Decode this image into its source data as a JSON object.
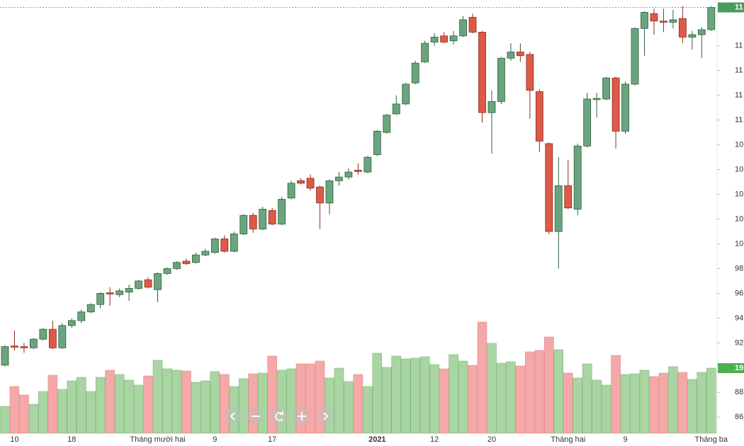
{
  "chart_data": {
    "type": "candlestick",
    "categories": [
      null,
      "10",
      null,
      null,
      null,
      null,
      null,
      "18",
      null,
      null,
      null,
      null,
      null,
      null,
      null,
      null,
      "Tháng mười hai",
      null,
      null,
      null,
      null,
      null,
      "9",
      null,
      null,
      null,
      null,
      null,
      "17",
      null,
      null,
      null,
      null,
      null,
      null,
      null,
      null,
      null,
      null,
      "2021",
      null,
      null,
      null,
      null,
      null,
      "12",
      null,
      null,
      null,
      null,
      null,
      "20",
      null,
      null,
      null,
      null,
      null,
      null,
      null,
      "Tháng hai",
      null,
      null,
      null,
      null,
      null,
      "9",
      null,
      null,
      null,
      null,
      null,
      null,
      null,
      null,
      "Tháng ba"
    ],
    "open": [
      90.2,
      91.75,
      91.7,
      91.6,
      92.3,
      93.1,
      91.6,
      93.4,
      93.8,
      94.5,
      95.1,
      96.05,
      95.9,
      96.1,
      96.4,
      97.1,
      96.3,
      97.6,
      98.0,
      98.6,
      98.5,
      99.1,
      99.3,
      100.4,
      99.4,
      100.8,
      102.3,
      101.2,
      102.7,
      101.6,
      103.7,
      105.1,
      105.3,
      104.6,
      103.3,
      105.1,
      105.4,
      105.95,
      105.8,
      107.2,
      109.0,
      110.5,
      111.3,
      113.0,
      114.7,
      116.3,
      116.8,
      116.4,
      116.8,
      118.3,
      117.1,
      110.6,
      111.5,
      115.0,
      115.5,
      115.3,
      112.3,
      108.1,
      101.0,
      104.7,
      102.8,
      107.9,
      111.65,
      111.7,
      113.4,
      109.1,
      112.9,
      117.4,
      118.6,
      118.0,
      117.9,
      118.2,
      116.7,
      116.9,
      117.3
    ],
    "high": [
      91.8,
      93.0,
      92.0,
      92.4,
      93.2,
      93.8,
      93.6,
      94.0,
      94.7,
      95.2,
      96.1,
      96.5,
      96.4,
      96.7,
      97.1,
      97.3,
      97.7,
      98.1,
      98.6,
      98.8,
      99.3,
      99.6,
      100.5,
      100.7,
      101.0,
      102.4,
      102.5,
      103.0,
      102.9,
      103.8,
      105.1,
      105.3,
      105.6,
      104.7,
      105.2,
      105.8,
      106.1,
      106.5,
      107.1,
      109.2,
      110.5,
      112.0,
      113.0,
      114.8,
      116.4,
      117.0,
      117.1,
      117.2,
      118.4,
      118.6,
      117.2,
      112.4,
      115.1,
      116.2,
      116.2,
      115.5,
      112.5,
      108.2,
      107.0,
      106.8,
      108.1,
      112.2,
      112.2,
      113.5,
      113.5,
      113.1,
      117.5,
      118.8,
      119.0,
      119.0,
      118.9,
      119.2,
      117.2,
      117.5,
      119.2
    ],
    "low": [
      90.1,
      91.4,
      91.2,
      91.5,
      92.2,
      91.5,
      91.5,
      93.2,
      93.6,
      94.4,
      94.8,
      95.0,
      95.7,
      95.4,
      96.3,
      96.4,
      95.3,
      97.5,
      97.9,
      98.3,
      98.4,
      99.0,
      99.2,
      99.3,
      99.3,
      100.7,
      100.9,
      101.1,
      101.5,
      101.5,
      103.6,
      104.8,
      104.3,
      101.2,
      102.4,
      104.7,
      105.2,
      105.6,
      105.7,
      107.1,
      108.9,
      110.4,
      111.2,
      112.9,
      114.6,
      116.0,
      116.2,
      116.1,
      116.7,
      117.0,
      109.8,
      107.3,
      111.3,
      114.8,
      114.7,
      110.1,
      107.4,
      100.8,
      98.0,
      102.8,
      102.3,
      107.8,
      110.2,
      111.6,
      107.7,
      108.9,
      112.8,
      115.2,
      116.9,
      117.1,
      117.4,
      116.2,
      115.7,
      115.0,
      117.2
    ],
    "close": [
      91.7,
      91.65,
      91.6,
      92.3,
      93.1,
      91.6,
      93.4,
      93.8,
      94.5,
      95.1,
      96.0,
      95.95,
      96.2,
      96.4,
      97.0,
      96.5,
      97.6,
      98.0,
      98.5,
      98.4,
      99.1,
      99.4,
      100.4,
      99.4,
      100.8,
      102.3,
      101.2,
      102.8,
      101.6,
      103.6,
      104.9,
      104.9,
      104.5,
      103.3,
      105.1,
      105.4,
      105.8,
      105.85,
      107.0,
      109.1,
      110.4,
      111.3,
      112.9,
      114.6,
      116.2,
      116.7,
      116.3,
      116.8,
      118.1,
      117.1,
      110.6,
      111.5,
      115.0,
      115.5,
      115.2,
      112.4,
      108.3,
      101.0,
      104.7,
      102.9,
      107.9,
      111.7,
      111.75,
      113.4,
      109.1,
      112.9,
      117.4,
      118.7,
      118.0,
      117.9,
      118.1,
      116.7,
      116.9,
      117.3,
      119.1
    ],
    "volume": [
      38,
      66,
      54,
      41,
      59,
      82,
      62,
      74,
      79,
      59,
      79,
      89,
      83,
      75,
      68,
      81,
      103,
      91,
      89,
      88,
      72,
      74,
      87,
      83,
      66,
      77,
      84,
      85,
      109,
      89,
      91,
      98,
      98,
      102,
      78,
      92,
      73,
      83,
      66,
      113,
      93,
      109,
      105,
      106,
      108,
      97,
      91,
      111,
      102,
      96,
      157,
      127,
      99,
      101,
      95,
      115,
      117,
      136,
      118,
      85,
      78,
      98,
      75,
      68,
      110,
      83,
      84,
      89,
      80,
      85,
      94,
      86,
      76,
      86,
      92
    ],
    "up_color": "#6aa57f",
    "down_color": "#de5a48",
    "up_volume_color": "#a8d5a2",
    "down_volume_color": "#f5a8a8",
    "ylim": [
      84.7,
      119.7
    ],
    "vlim": [
      0,
      200
    ],
    "yticks": [
      86,
      88,
      {
        "value": 92,
        "label": "92"
      },
      94,
      96,
      98,
      {
        "value": 100,
        "label": "10"
      },
      {
        "value": 102,
        "label": "10"
      },
      {
        "value": 104,
        "label": "10"
      },
      {
        "value": 106,
        "label": "10"
      },
      {
        "value": 108,
        "label": "10"
      },
      {
        "value": 110,
        "label": "11"
      },
      {
        "value": 112,
        "label": "11"
      },
      {
        "value": 114,
        "label": "11"
      },
      {
        "value": 116,
        "label": "11"
      }
    ],
    "last_price_label": "11",
    "last_volume_label": "19"
  }
}
